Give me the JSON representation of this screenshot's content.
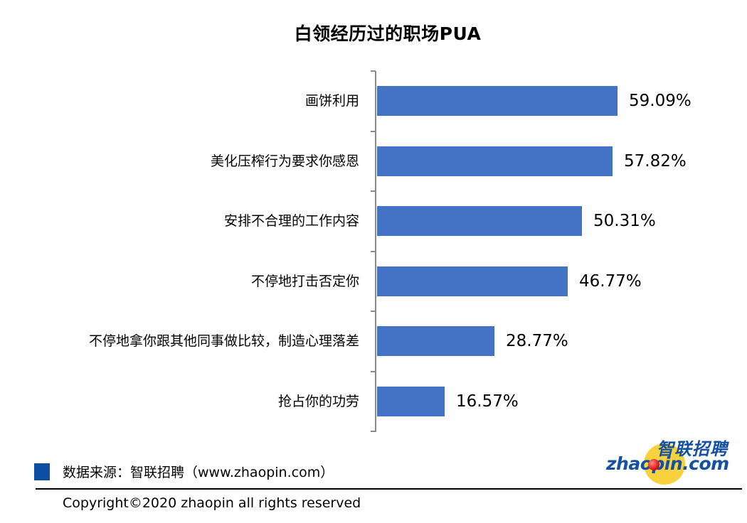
{
  "title": "白领经历过的职场PUA",
  "colors": {
    "bar": "#4472C4",
    "axis": "#8C8C8C",
    "legend_swatch": "#0B4EA2",
    "logo_blue": "#1451A4",
    "logo_yellow": "#F7D23C"
  },
  "rows": [
    {
      "label": "画饼利用",
      "value_label": "59.09%",
      "value": 59.09
    },
    {
      "label": "美化压榨行为要求你感恩",
      "value_label": "57.82%",
      "value": 57.82
    },
    {
      "label": "安排不合理的工作内容",
      "value_label": "50.31%",
      "value": 50.31
    },
    {
      "label": "不停地打击否定你",
      "value_label": "46.77%",
      "value": 46.77
    },
    {
      "label": "不停地拿你跟其他同事做比较，制造心理落差",
      "value_label": "28.77%",
      "value": 28.77
    },
    {
      "label": "抢占你的功劳",
      "value_label": "16.57%",
      "value": 16.57
    }
  ],
  "footer": {
    "source": "数据来源：智联招聘（www.zhaopin.com）",
    "copyright": "Copyright©2020 zhaopin all rights reserved"
  },
  "logo": {
    "cn": "智联招聘",
    "en": "zhaopin.com"
  },
  "chart_data": {
    "type": "bar",
    "orientation": "horizontal",
    "title": "白领经历过的职场PUA",
    "categories": [
      "画饼利用",
      "美化压榨行为要求你感恩",
      "安排不合理的工作内容",
      "不停地打击否定你",
      "不停地拿你跟其他同事做比较，制造心理落差",
      "抢占你的功劳"
    ],
    "values": [
      59.09,
      57.82,
      50.31,
      46.77,
      28.77,
      16.57
    ],
    "unit": "%",
    "data_labels": [
      "59.09%",
      "57.82%",
      "50.31%",
      "46.77%",
      "28.77%",
      "16.57%"
    ],
    "xlabel": "",
    "ylabel": "",
    "grid": false,
    "legend": null,
    "source": "数据来源：智联招聘（www.zhaopin.com）"
  }
}
